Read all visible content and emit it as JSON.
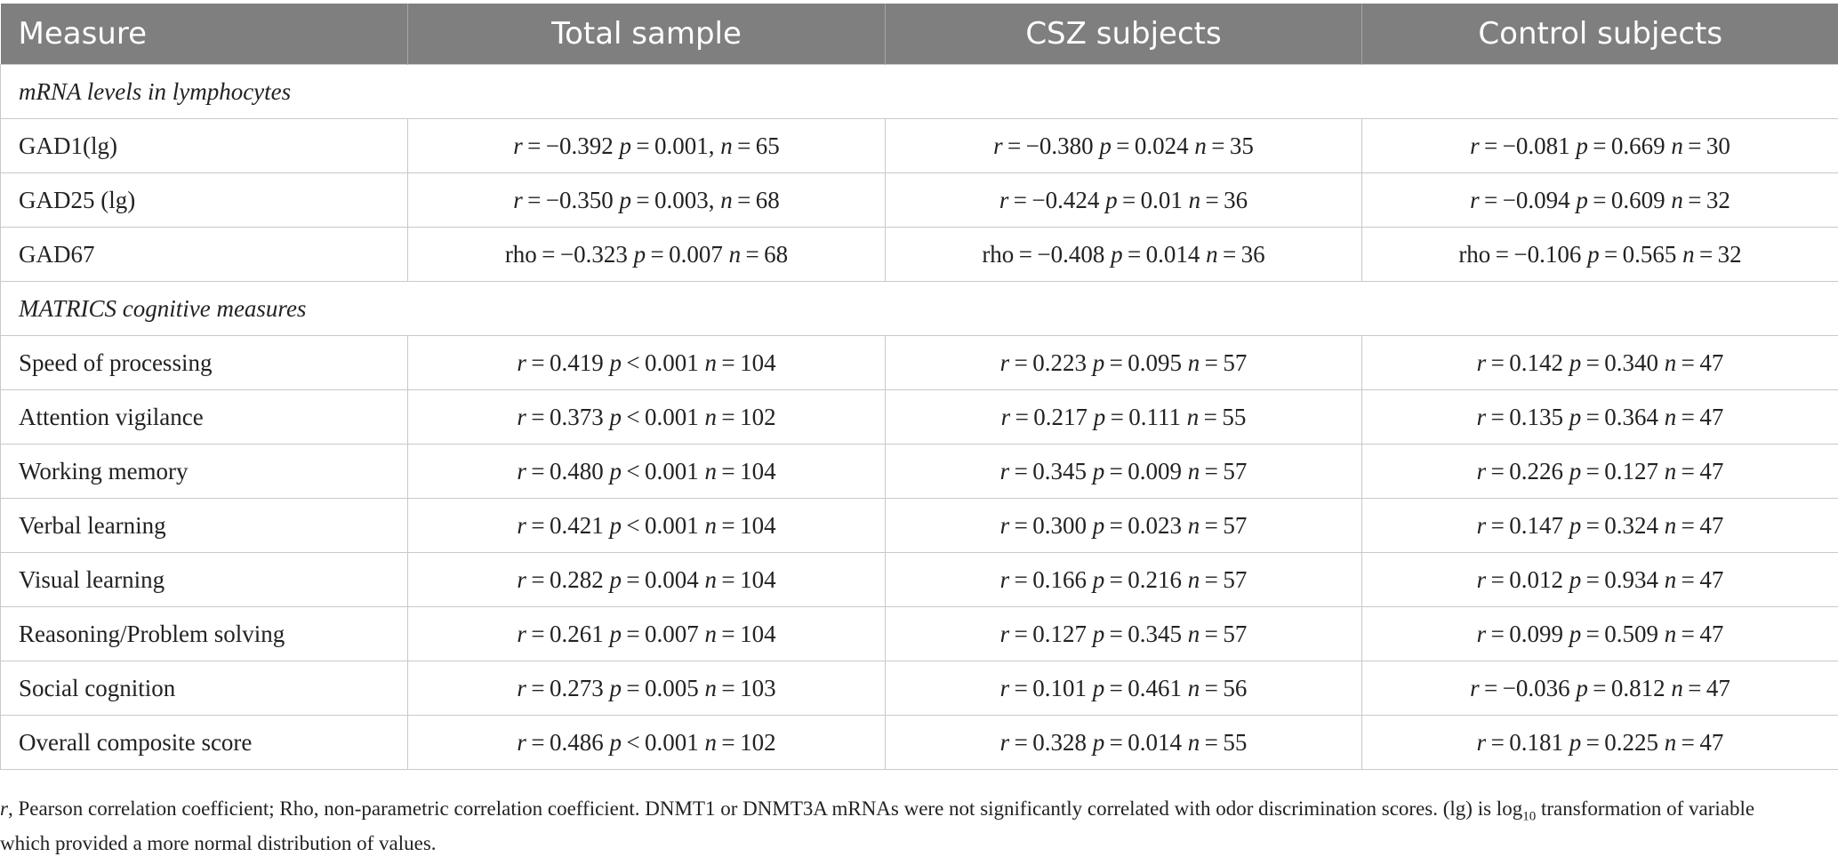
{
  "headers": [
    "Measure",
    "Total sample",
    "CSZ subjects",
    "Control subjects"
  ],
  "sections": [
    {
      "title": "mRNA levels in lymphocytes",
      "rows": [
        {
          "label": "GAD1(lg)",
          "cells": [
            {
              "stat": "r",
              "val": " = −0.392",
              "p": " = 0.001,",
              "n": " = 65"
            },
            {
              "stat": "r",
              "val": " = −0.380",
              "p": " = 0.024",
              "n": " = 35"
            },
            {
              "stat": "r",
              "val": " = −0.081",
              "p": " = 0.669",
              "n": " = 30"
            }
          ]
        },
        {
          "label": "GAD25 (lg)",
          "cells": [
            {
              "stat": "r",
              "val": " = −0.350",
              "p": " = 0.003,",
              "n": " = 68"
            },
            {
              "stat": "r",
              "val": " = −0.424",
              "p": " = 0.01",
              "n": " = 36"
            },
            {
              "stat": "r",
              "val": " = −0.094",
              "p": " = 0.609",
              "n": " = 32"
            }
          ]
        },
        {
          "label": "GAD67",
          "cells": [
            {
              "stat": "rho",
              "val": " = −0.323",
              "p": " = 0.007",
              "n": " = 68"
            },
            {
              "stat": "rho",
              "val": " = −0.408",
              "p": " = 0.014",
              "n": " = 36"
            },
            {
              "stat": "rho",
              "val": " = −0.106",
              "p": " = 0.565",
              "n": " = 32"
            }
          ]
        }
      ]
    },
    {
      "title": "MATRICS cognitive measures",
      "rows": [
        {
          "label": "Speed of processing",
          "cells": [
            {
              "stat": "r",
              "val": " = 0.419",
              "p": " < 0.001",
              "n": " = 104"
            },
            {
              "stat": "r",
              "val": " = 0.223",
              "p": " = 0.095",
              "n": " = 57"
            },
            {
              "stat": "r",
              "val": " = 0.142",
              "p": " = 0.340",
              "n": " = 47"
            }
          ]
        },
        {
          "label": "Attention vigilance",
          "cells": [
            {
              "stat": "r",
              "val": " = 0.373",
              "p": " < 0.001",
              "n": " = 102"
            },
            {
              "stat": "r",
              "val": " = 0.217",
              "p": " = 0.111",
              "n": " = 55"
            },
            {
              "stat": "r",
              "val": " = 0.135",
              "p": " = 0.364",
              "n": " = 47"
            }
          ]
        },
        {
          "label": "Working memory",
          "cells": [
            {
              "stat": "r",
              "val": " = 0.480",
              "p": " < 0.001",
              "n": " = 104"
            },
            {
              "stat": "r",
              "val": " = 0.345",
              "p": " = 0.009",
              "n": " = 57"
            },
            {
              "stat": "r",
              "val": " = 0.226",
              "p": " = 0.127",
              "n": " = 47"
            }
          ]
        },
        {
          "label": "Verbal learning",
          "cells": [
            {
              "stat": "r",
              "val": " = 0.421",
              "p": " < 0.001",
              "n": " = 104"
            },
            {
              "stat": "r",
              "val": " = 0.300",
              "p": " = 0.023",
              "n": " = 57"
            },
            {
              "stat": "r",
              "val": " = 0.147",
              "p": " = 0.324",
              "n": " = 47"
            }
          ]
        },
        {
          "label": "Visual learning",
          "cells": [
            {
              "stat": "r",
              "val": " = 0.282",
              "p": " = 0.004",
              "n": " = 104"
            },
            {
              "stat": "r",
              "val": " = 0.166",
              "p": " = 0.216",
              "n": " = 57"
            },
            {
              "stat": "r",
              "val": " = 0.012",
              "p": " = 0.934",
              "n": " = 47"
            }
          ]
        },
        {
          "label": "Reasoning/Problem solving",
          "cells": [
            {
              "stat": "r",
              "val": " = 0.261",
              "p": " = 0.007",
              "n": " = 104"
            },
            {
              "stat": "r",
              "val": " = 0.127",
              "p": " = 0.345",
              "n": " = 57"
            },
            {
              "stat": "r",
              "val": " = 0.099",
              "p": " = 0.509",
              "n": " = 47"
            }
          ]
        },
        {
          "label": "Social cognition",
          "cells": [
            {
              "stat": "r",
              "val": " = 0.273",
              "p": " = 0.005",
              "n": " = 103"
            },
            {
              "stat": "r",
              "val": " = 0.101",
              "p": " = 0.461",
              "n": " = 56"
            },
            {
              "stat": "r",
              "val": " = −0.036",
              "p": " = 0.812",
              "n": " = 47"
            }
          ]
        },
        {
          "label": "Overall composite score",
          "cells": [
            {
              "stat": "r",
              "val": " = 0.486",
              "p": " < 0.001",
              "n": " = 102"
            },
            {
              "stat": "r",
              "val": " = 0.328",
              "p": " = 0.014",
              "n": " = 55"
            },
            {
              "stat": "r",
              "val": " = 0.181",
              "p": " = 0.225",
              "n": " = 47"
            }
          ]
        }
      ]
    }
  ],
  "footnote": {
    "r_symbol": "r",
    "part1": ", Pearson correlation coefficient; Rho, non-parametric correlation coefficient. DNMT1 or DNMT3A mRNAs were not significantly correlated with odor discrimination scores. (lg) is log",
    "subscript": "10",
    "part2": " transformation of variable which provided a more normal distribution of values."
  }
}
